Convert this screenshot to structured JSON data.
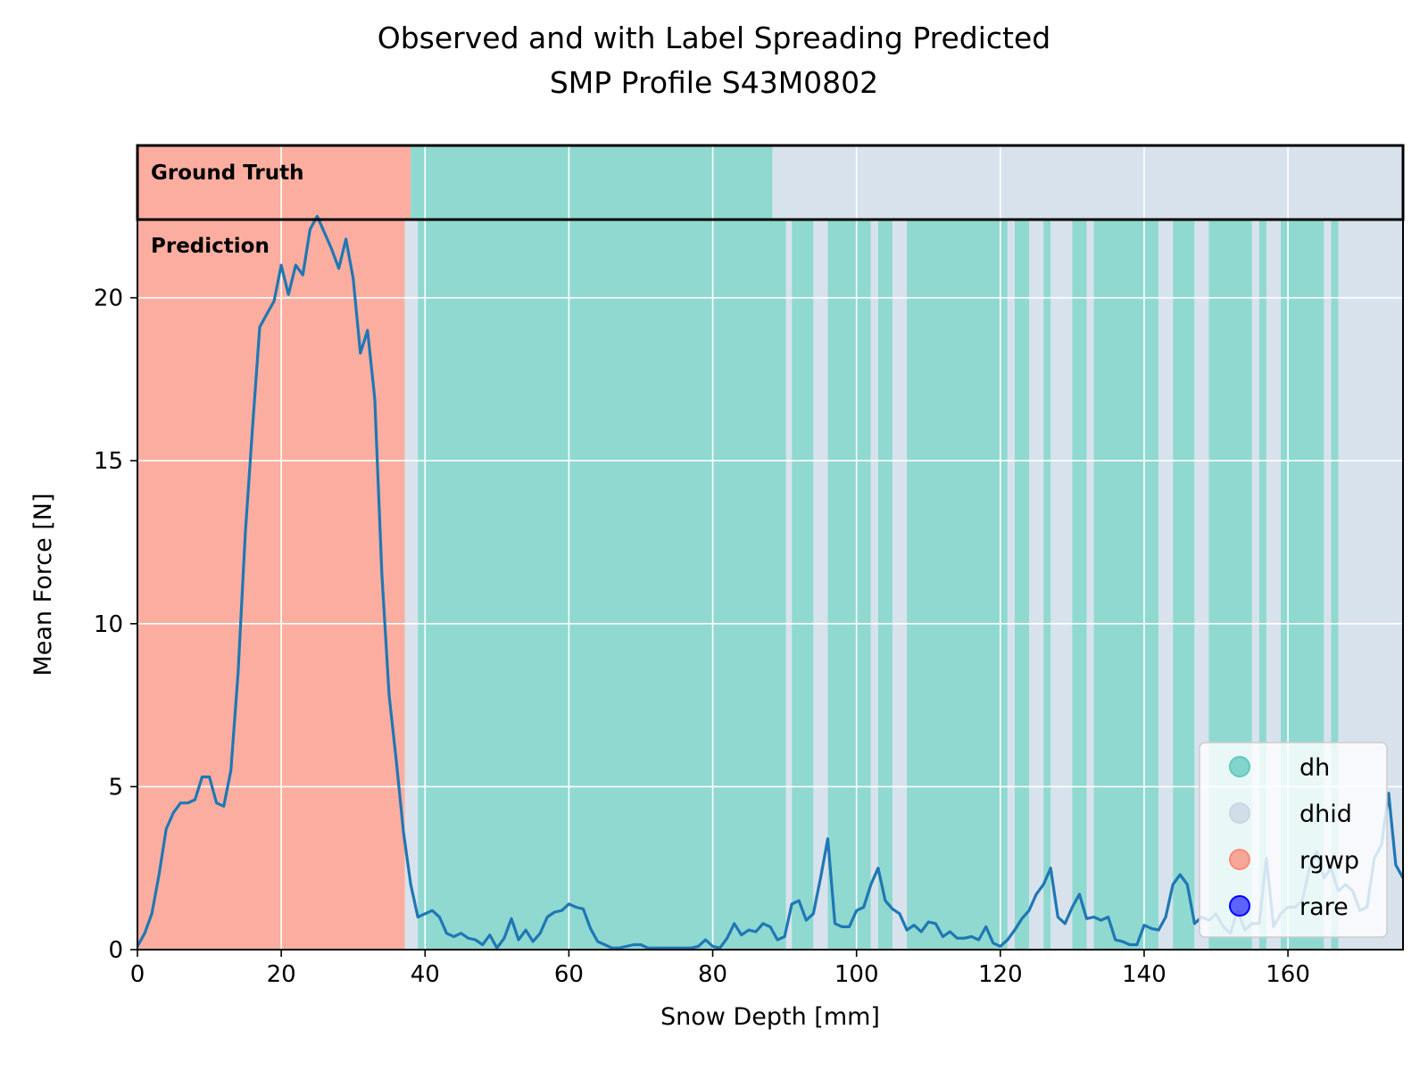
{
  "chart_data": {
    "type": "line",
    "title": "Observed and with Label Spreading Predicted",
    "subtitle": "SMP Profile S43M0802",
    "xlabel": "Snow Depth [mm]",
    "ylabel": "Mean Force [N]",
    "xlim": [
      0,
      176
    ],
    "ylim": [
      0,
      22.4
    ],
    "xticks": [
      0,
      20,
      40,
      60,
      80,
      100,
      120,
      140,
      160
    ],
    "yticks": [
      0,
      5,
      10,
      15,
      20
    ],
    "grid": true,
    "legend_position": "bottom-right",
    "band_labels": {
      "ground_truth": "Ground Truth",
      "prediction": "Prediction"
    },
    "classes": [
      {
        "name": "dh",
        "color": "#5fc9bd"
      },
      {
        "name": "dhid",
        "color": "#c8d5e6"
      },
      {
        "name": "rgwp",
        "color": "#fa8c78"
      },
      {
        "name": "rare",
        "color": "#0000ff"
      }
    ],
    "ground_truth_segments": [
      {
        "start": 0,
        "end": 38,
        "label": "rgwp"
      },
      {
        "start": 38,
        "end": 88.3,
        "label": "dh"
      },
      {
        "start": 88.3,
        "end": 176,
        "label": "dhid"
      }
    ],
    "prediction_segments": [
      {
        "start": 0,
        "end": 37.2,
        "label": "rgwp"
      },
      {
        "start": 37.2,
        "end": 39,
        "label": "dhid"
      },
      {
        "start": 39,
        "end": 90.2,
        "label": "dh"
      },
      {
        "start": 90.2,
        "end": 91,
        "label": "dhid"
      },
      {
        "start": 91,
        "end": 94,
        "label": "dh"
      },
      {
        "start": 94,
        "end": 96,
        "label": "dhid"
      },
      {
        "start": 96,
        "end": 102,
        "label": "dh"
      },
      {
        "start": 102,
        "end": 103,
        "label": "dhid"
      },
      {
        "start": 103,
        "end": 105,
        "label": "dh"
      },
      {
        "start": 105,
        "end": 107,
        "label": "dhid"
      },
      {
        "start": 107,
        "end": 121,
        "label": "dh"
      },
      {
        "start": 121,
        "end": 122,
        "label": "dhid"
      },
      {
        "start": 122,
        "end": 124,
        "label": "dh"
      },
      {
        "start": 124,
        "end": 126,
        "label": "dhid"
      },
      {
        "start": 126,
        "end": 127,
        "label": "dh"
      },
      {
        "start": 127,
        "end": 130,
        "label": "dhid"
      },
      {
        "start": 130,
        "end": 132,
        "label": "dh"
      },
      {
        "start": 132,
        "end": 133,
        "label": "dhid"
      },
      {
        "start": 133,
        "end": 142,
        "label": "dh"
      },
      {
        "start": 142,
        "end": 144,
        "label": "dhid"
      },
      {
        "start": 144,
        "end": 147,
        "label": "dh"
      },
      {
        "start": 147,
        "end": 149,
        "label": "dhid"
      },
      {
        "start": 149,
        "end": 155,
        "label": "dh"
      },
      {
        "start": 155,
        "end": 156,
        "label": "dhid"
      },
      {
        "start": 156,
        "end": 157,
        "label": "dh"
      },
      {
        "start": 157,
        "end": 159,
        "label": "dhid"
      },
      {
        "start": 159,
        "end": 165,
        "label": "dh"
      },
      {
        "start": 165,
        "end": 166,
        "label": "dhid"
      },
      {
        "start": 166,
        "end": 167,
        "label": "dh"
      },
      {
        "start": 167,
        "end": 176,
        "label": "dhid"
      }
    ],
    "series": [
      {
        "x": [
          0,
          1,
          2,
          3,
          4,
          5,
          6,
          7,
          8,
          9,
          10,
          11,
          12,
          13,
          14,
          15,
          16,
          17,
          18,
          19,
          20,
          21,
          22,
          23,
          24,
          25,
          26,
          27,
          28,
          29,
          30,
          31,
          32,
          33,
          34,
          35,
          36,
          37,
          38,
          39,
          40,
          41,
          42,
          43,
          44,
          45,
          46,
          47,
          48,
          49,
          50,
          51,
          52,
          53,
          54,
          55,
          56,
          57,
          58,
          59,
          60,
          61,
          62,
          63,
          64,
          65,
          66,
          67,
          68,
          69,
          70,
          71,
          72,
          73,
          74,
          75,
          76,
          77,
          78,
          79,
          80,
          81,
          82,
          83,
          84,
          85,
          86,
          87,
          88,
          89,
          90,
          91,
          92,
          93,
          94,
          95,
          96,
          97,
          98,
          99,
          100,
          101,
          102,
          103,
          104,
          105,
          106,
          107,
          108,
          109,
          110,
          111,
          112,
          113,
          114,
          115,
          116,
          117,
          118,
          119,
          120,
          121,
          122,
          123,
          124,
          125,
          126,
          127,
          128,
          129,
          130,
          131,
          132,
          133,
          134,
          135,
          136,
          137,
          138,
          139,
          140,
          141,
          142,
          143,
          144,
          145,
          146,
          147,
          148,
          149,
          150,
          151,
          152,
          153,
          154,
          155,
          156,
          157,
          158,
          159,
          160,
          161,
          162,
          163,
          164,
          165,
          166,
          167,
          168,
          169,
          170,
          171,
          172,
          173,
          174,
          175,
          176
        ],
        "y": [
          0.1,
          0.5,
          1.1,
          2.3,
          3.7,
          4.2,
          4.5,
          4.5,
          4.6,
          5.3,
          5.3,
          4.5,
          4.4,
          5.5,
          8.5,
          12.8,
          16.0,
          19.1,
          19.5,
          19.9,
          21.0,
          20.1,
          21.0,
          20.7,
          22.1,
          22.5,
          22.0,
          21.5,
          20.9,
          21.8,
          20.6,
          18.3,
          19.0,
          16.9,
          11.5,
          7.8,
          5.8,
          3.6,
          2.0,
          1.0,
          1.1,
          1.2,
          1.0,
          0.5,
          0.4,
          0.5,
          0.35,
          0.3,
          0.15,
          0.45,
          0.05,
          0.35,
          0.95,
          0.3,
          0.6,
          0.25,
          0.5,
          1.0,
          1.15,
          1.2,
          1.4,
          1.3,
          1.25,
          0.65,
          0.25,
          0.15,
          0.05,
          0.05,
          0.1,
          0.15,
          0.15,
          0.05,
          0.05,
          0.05,
          0.05,
          0.05,
          0.05,
          0.05,
          0.1,
          0.3,
          0.1,
          0.05,
          0.35,
          0.8,
          0.45,
          0.6,
          0.55,
          0.8,
          0.7,
          0.3,
          0.4,
          1.4,
          1.5,
          0.9,
          1.1,
          2.2,
          3.4,
          0.8,
          0.7,
          0.7,
          1.2,
          1.3,
          2.0,
          2.5,
          1.5,
          1.25,
          1.1,
          0.6,
          0.75,
          0.55,
          0.85,
          0.8,
          0.4,
          0.55,
          0.35,
          0.35,
          0.4,
          0.3,
          0.7,
          0.2,
          0.1,
          0.3,
          0.6,
          0.95,
          1.2,
          1.7,
          2.0,
          2.5,
          1.0,
          0.8,
          1.3,
          1.7,
          0.95,
          1.0,
          0.9,
          1.0,
          0.3,
          0.25,
          0.15,
          0.15,
          0.75,
          0.65,
          0.6,
          1.0,
          2.0,
          2.3,
          2.0,
          0.8,
          1.0,
          0.9,
          1.1,
          0.7,
          0.5,
          1.2,
          0.6,
          0.8,
          0.8,
          2.8,
          0.7,
          1.1,
          1.3,
          1.3,
          1.5,
          2.5,
          3.0,
          2.2,
          2.5,
          1.8,
          2.0,
          1.8,
          1.2,
          1.3,
          2.8,
          3.2,
          4.8,
          2.6,
          2.2
        ]
      }
    ]
  }
}
